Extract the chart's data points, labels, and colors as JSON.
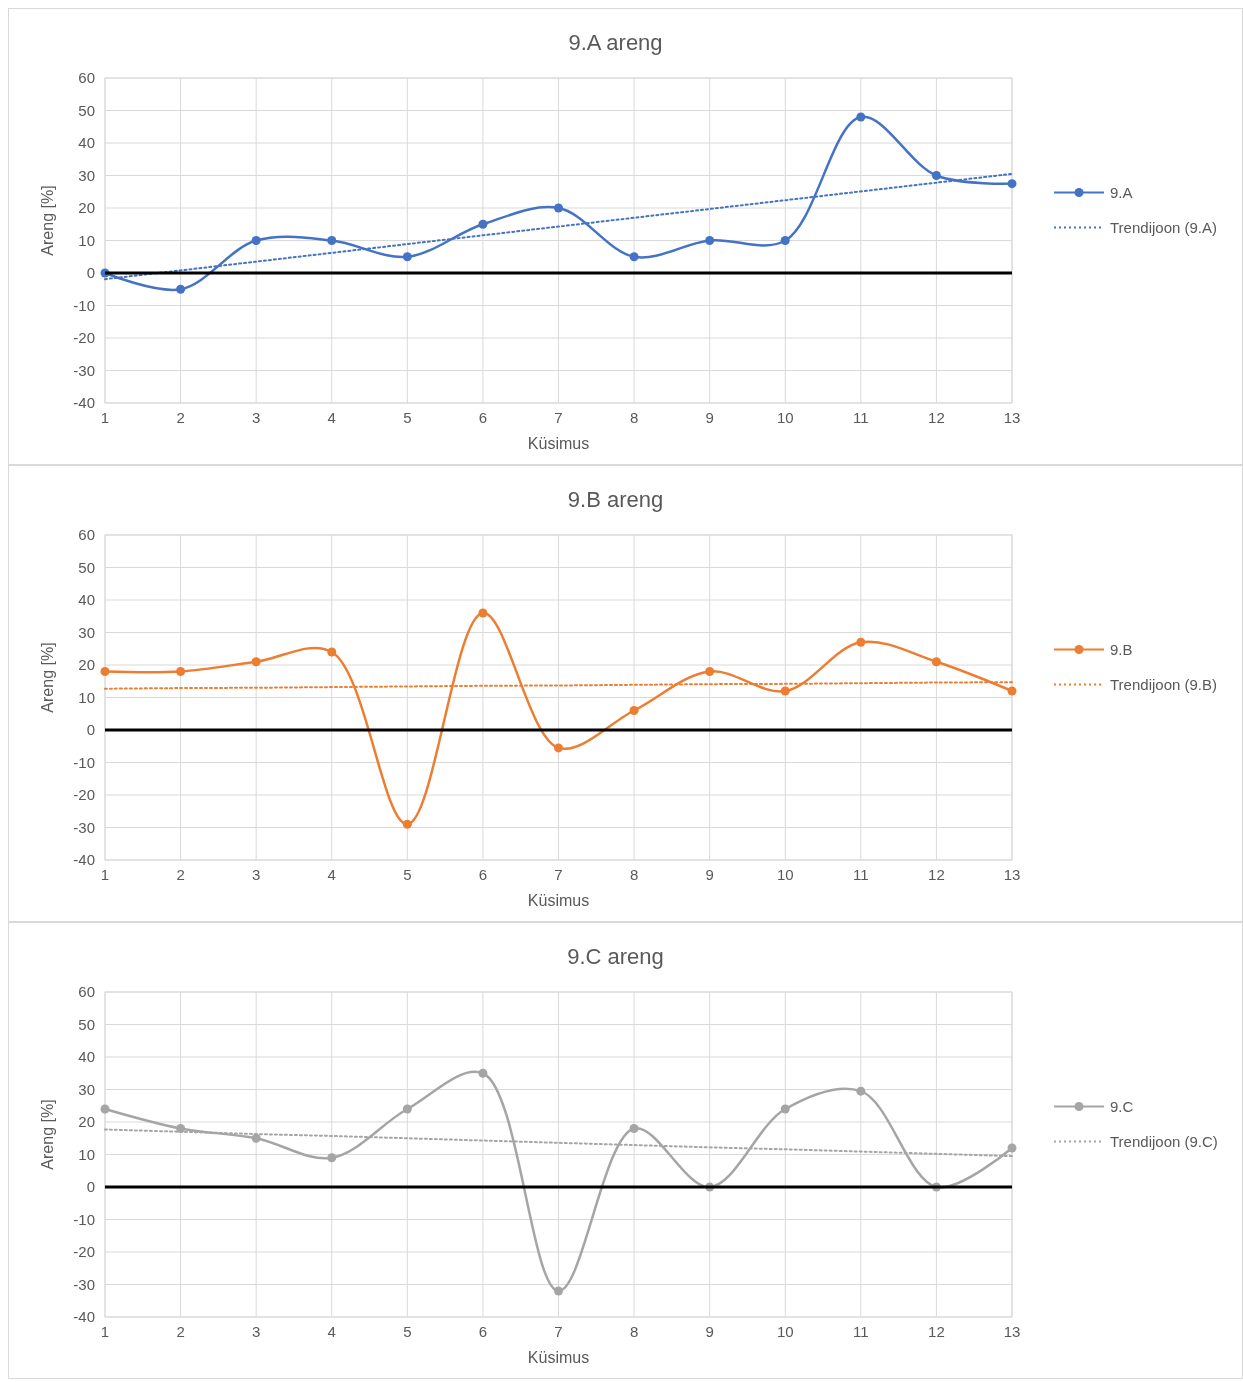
{
  "chart_data": [
    {
      "type": "line",
      "title": "9.A areng",
      "xlabel": "Küsimus",
      "ylabel": "Areng [%]",
      "x": [
        1,
        2,
        3,
        4,
        5,
        6,
        7,
        8,
        9,
        10,
        11,
        12,
        13
      ],
      "xlim": [
        1,
        13
      ],
      "xticks": [
        1,
        2,
        3,
        4,
        5,
        6,
        7,
        8,
        9,
        10,
        11,
        12,
        13
      ],
      "ylim": [
        -40,
        60
      ],
      "yticks": [
        -40,
        -30,
        -20,
        -10,
        0,
        10,
        20,
        30,
        40,
        50,
        60
      ],
      "grid": true,
      "legend": "right",
      "marker": "circle",
      "series": [
        {
          "name": "9.A",
          "color": "#4472c4",
          "values": [
            0,
            -5,
            10,
            10,
            5,
            15,
            20,
            5,
            10,
            10,
            48,
            30,
            27.5
          ]
        },
        {
          "name": "Trendijoon (9.A)",
          "type": "line",
          "color": "#4472c4",
          "line_style": "dotted",
          "marker": "none",
          "values": [
            -1.9,
            0.8,
            3.5,
            6.2,
            8.9,
            11.6,
            14.3,
            17,
            19.7,
            22.4,
            25.1,
            27.8,
            30.5
          ]
        }
      ]
    },
    {
      "type": "line",
      "title": "9.B areng",
      "xlabel": "Küsimus",
      "ylabel": "Areng [%]",
      "x": [
        1,
        2,
        3,
        4,
        5,
        6,
        7,
        8,
        9,
        10,
        11,
        12,
        13
      ],
      "xlim": [
        1,
        13
      ],
      "xticks": [
        1,
        2,
        3,
        4,
        5,
        6,
        7,
        8,
        9,
        10,
        11,
        12,
        13
      ],
      "ylim": [
        -40,
        60
      ],
      "yticks": [
        -40,
        -30,
        -20,
        -10,
        0,
        10,
        20,
        30,
        40,
        50,
        60
      ],
      "grid": true,
      "legend": "right",
      "marker": "circle",
      "series": [
        {
          "name": "9.B",
          "color": "#ed7d31",
          "values": [
            18,
            18,
            21,
            24,
            -29,
            36,
            -5.5,
            6,
            18,
            12,
            27,
            21,
            12
          ]
        },
        {
          "name": "Trendijoon (9.B)",
          "type": "line",
          "color": "#ed7d31",
          "line_style": "dotted",
          "marker": "none",
          "values": [
            12.7,
            12.9,
            13,
            13.2,
            13.4,
            13.6,
            13.7,
            13.9,
            14.1,
            14.2,
            14.4,
            14.6,
            14.7
          ]
        }
      ]
    },
    {
      "type": "line",
      "title": "9.C areng",
      "xlabel": "Küsimus",
      "ylabel": "Areng [%]",
      "x": [
        1,
        2,
        3,
        4,
        5,
        6,
        7,
        8,
        9,
        10,
        11,
        12,
        13
      ],
      "xlim": [
        1,
        13
      ],
      "xticks": [
        1,
        2,
        3,
        4,
        5,
        6,
        7,
        8,
        9,
        10,
        11,
        12,
        13
      ],
      "ylim": [
        -40,
        60
      ],
      "yticks": [
        -40,
        -30,
        -20,
        -10,
        0,
        10,
        20,
        30,
        40,
        50,
        60
      ],
      "grid": true,
      "legend": "right",
      "marker": "circle",
      "series": [
        {
          "name": "9.C",
          "color": "#a5a5a5",
          "values": [
            24,
            18,
            15,
            9,
            24,
            35,
            -32,
            18,
            0,
            24,
            29.5,
            0,
            12
          ]
        },
        {
          "name": "Trendijoon (9.C)",
          "type": "line",
          "color": "#a5a5a5",
          "line_style": "dotted",
          "marker": "none",
          "values": [
            17.7,
            17,
            16.3,
            15.7,
            15,
            14.3,
            13.6,
            12.9,
            12.2,
            11.6,
            10.9,
            10.2,
            9.5
          ]
        }
      ]
    }
  ]
}
